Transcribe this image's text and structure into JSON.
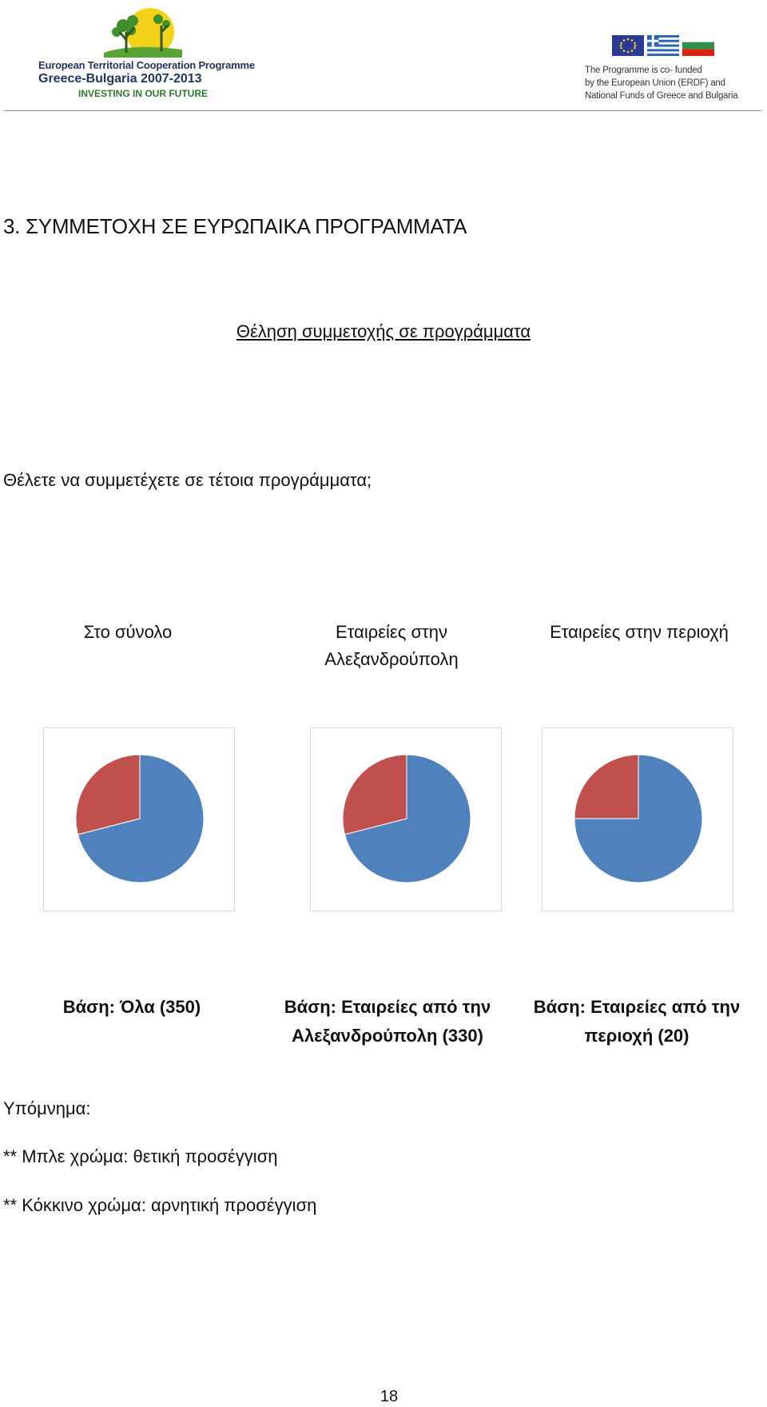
{
  "header": {
    "logo_left": {
      "line1": "European Territorial Cooperation Programme",
      "line2": "Greece-Bulgaria 2007-2013",
      "line3": "INVESTING IN OUR FUTURE"
    },
    "logo_right": {
      "lines": [
        "The Programme is co- funded",
        "by the European Union (ERDF) and",
        "National Funds of Greece and Bulgaria"
      ]
    }
  },
  "section_title": "3. ΣΥΜΜΕΤΟΧΗ ΣΕ ΕΥΡΩΠΑΙΚΑ ΠΡΟΓΡΑΜΜΑΤΑ",
  "subtitle": "Θέληση συμμετοχής σε προγράμματα",
  "question": "Θέλετε να συμμετέχετε σε τέτοια προγράμματα;",
  "groups": [
    {
      "title_lines": [
        "Στο σύνολο"
      ],
      "base_lines": [
        "Βάση: Όλα (350)"
      ]
    },
    {
      "title_lines": [
        "Εταιρείες στην",
        "Αλεξανδρούπολη"
      ],
      "base_lines": [
        "Βάση: Εταιρείες από την",
        "Αλεξανδρούπολη (330)"
      ]
    },
    {
      "title_lines": [
        "Εταιρείες στην περιοχή"
      ],
      "base_lines": [
        "Βάση: Εταιρείες από την",
        "περιοχή (20)"
      ]
    }
  ],
  "chart_data": [
    {
      "type": "pie",
      "title": "Στο σύνολο",
      "categories": [
        "θετική προσέγγιση",
        "αρνητική προσέγγιση"
      ],
      "values": [
        71,
        29
      ],
      "colors": [
        "#4f81bd",
        "#c0504d"
      ]
    },
    {
      "type": "pie",
      "title": "Εταιρείες στην Αλεξανδρούπολη",
      "categories": [
        "θετική προσέγγιση",
        "αρνητική προσέγγιση"
      ],
      "values": [
        71,
        29
      ],
      "colors": [
        "#4f81bd",
        "#c0504d"
      ]
    },
    {
      "type": "pie",
      "title": "Εταιρείες στην περιοχή",
      "categories": [
        "θετική προσέγγιση",
        "αρνητική προσέγγιση"
      ],
      "values": [
        75,
        25
      ],
      "colors": [
        "#4f81bd",
        "#c0504d"
      ]
    }
  ],
  "legend": {
    "title": "Υπόμνημα:",
    "items": [
      "** Μπλε χρώμα: θετική προσέγγιση",
      "** Κόκκινο χρώμα: αρνητική προσέγγιση"
    ]
  },
  "page_number": "18",
  "colors": {
    "positive": "#4f81bd",
    "negative": "#c0504d",
    "logo_navy": "#23345f",
    "logo_green": "#2e7a2a"
  }
}
